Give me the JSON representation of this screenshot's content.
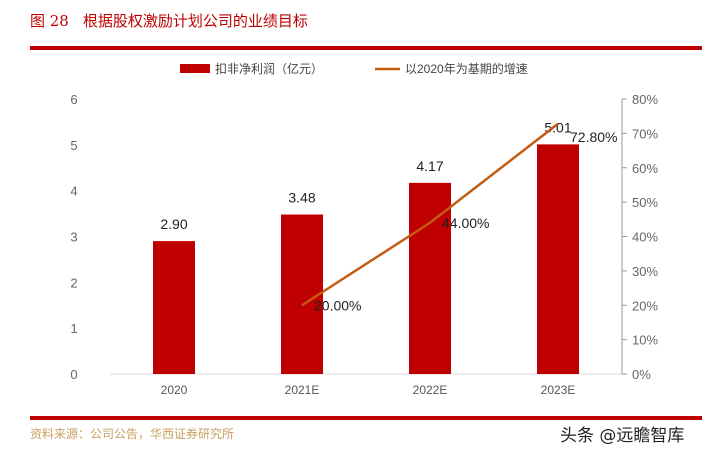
{
  "figure": {
    "number": "图 28",
    "title": "根据股权激励计划公司的业绩目标",
    "source": "资料来源：公司公告，华西证券研究所",
    "watermark": "头条 @远瞻智库"
  },
  "chart_data": {
    "type": "bar+line",
    "categories": [
      "2020",
      "2021E",
      "2022E",
      "2023E"
    ],
    "series": [
      {
        "name": "扣非净利润（亿元）",
        "type": "bar",
        "axis": "left",
        "values": [
          2.9,
          3.48,
          4.17,
          5.01
        ],
        "labels": [
          "2.90",
          "3.48",
          "4.17",
          "5.01"
        ],
        "color": "#c00000"
      },
      {
        "name": "以2020年为基期的增速",
        "type": "line",
        "axis": "right",
        "values": [
          null,
          20.0,
          44.0,
          72.8
        ],
        "labels": [
          "",
          "20.00%",
          "44.00%",
          "72.80%"
        ],
        "color": "#c55a11"
      }
    ],
    "left_axis": {
      "ylim": [
        0,
        6
      ],
      "ticks": [
        "0",
        "1",
        "2",
        "3",
        "4",
        "5",
        "6"
      ]
    },
    "right_axis": {
      "ylim": [
        0,
        80
      ],
      "ticks": [
        "0%",
        "10%",
        "20%",
        "30%",
        "40%",
        "50%",
        "60%",
        "70%",
        "80%"
      ]
    },
    "legend": "top",
    "grid": false
  }
}
